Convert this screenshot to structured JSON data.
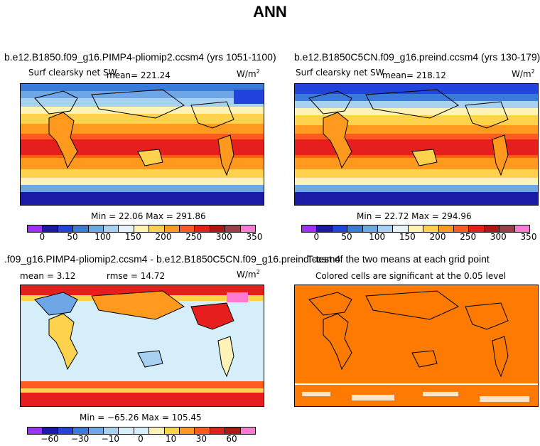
{
  "title": "ANN",
  "panels": [
    {
      "title": "b.e12.B1850.f09_g16.PIMP4-pliomip2.ccsm4 (yrs 1051-1100)",
      "variable": "Surf clearsky net SW",
      "stat": "mean= 221.24",
      "units": "W/m",
      "units_exp": "2",
      "minmax": "Min =  22.06 Max = 291.86"
    },
    {
      "title": "b.e12.B1850C5CN.f09_g16.preind.ccsm4 (yrs 130-179)",
      "variable": "Surf clearsky net SW",
      "stat": "mean= 218.12",
      "units": "W/m",
      "units_exp": "2",
      "minmax": "Min =  22.72 Max = 294.96"
    },
    {
      "title": ".f09_g16.PIMP4-pliomip2.ccsm4 - b.e12.B1850C5CN.f09_g16.preind.ccsm4",
      "stat": "mean =    3.12",
      "rmse": "rmse =   14.72",
      "units": "W/m",
      "units_exp": "2",
      "minmax": "Min = −65.26 Max = 105.45"
    },
    {
      "title": "T-test of the two means at each grid point",
      "subtitle": "Colored cells are significant at the 0.05 level"
    }
  ],
  "colorbar_abs": {
    "colors": [
      "#9b30ff",
      "#1a1aa6",
      "#2244dd",
      "#3a7ad8",
      "#6ea6e6",
      "#a8d0f0",
      "#e6f4fa",
      "#fff3b8",
      "#ffd24d",
      "#ff9a1f",
      "#ff5a1f",
      "#e61e1e",
      "#b31414",
      "#a03c46",
      "#ff7ad0"
    ],
    "ticks": [
      "0",
      "50",
      "100",
      "150",
      "200",
      "250",
      "300",
      "350"
    ]
  },
  "colorbar_diff": {
    "colors": [
      "#9b30ff",
      "#1a1aa6",
      "#2244dd",
      "#3a7ad8",
      "#6ea6e6",
      "#a8d0f0",
      "#d6eefa",
      "#d6eefa",
      "#fff3b8",
      "#ffd24d",
      "#ff9a1f",
      "#ff5a1f",
      "#e61e1e",
      "#b31414",
      "#ff7ad0"
    ],
    "ticks": [
      "−60",
      "−30",
      "−10",
      "0",
      "10",
      "30",
      "60"
    ]
  },
  "ttest_color": "#ff7a00"
}
